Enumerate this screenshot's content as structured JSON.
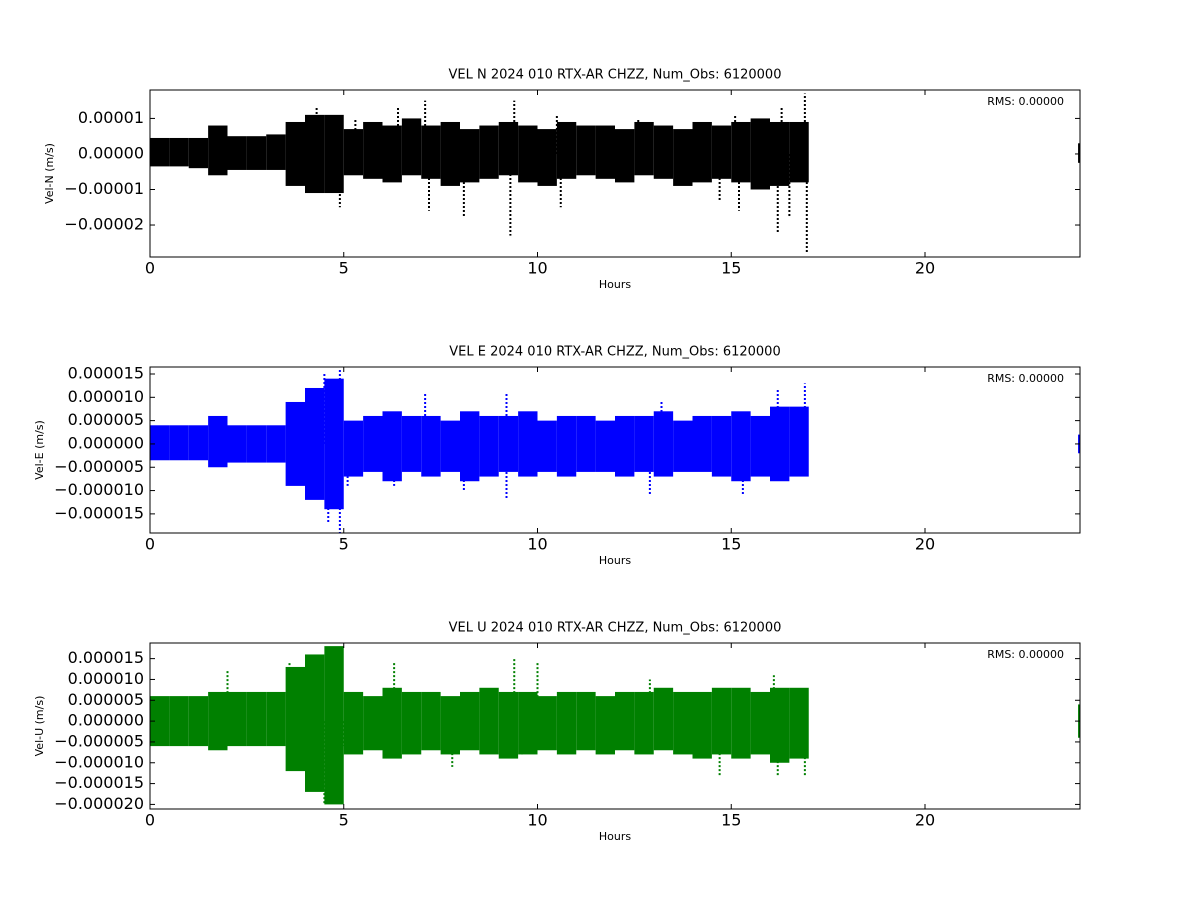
{
  "chart_data": [
    {
      "type": "scatter",
      "title": "VEL N 2024 010 RTX-AR  CHZZ, Num_Obs: 6120000",
      "xlabel": "Hours",
      "ylabel": "Vel-N (m/s)",
      "annotation": "RMS:  0.00000",
      "annotation_color": "#0000ff",
      "color": "#000000",
      "xlim": [
        0,
        24
      ],
      "xticks": [
        0,
        5,
        10,
        15,
        20
      ],
      "ylim": [
        -2.9e-05,
        1.8e-05
      ],
      "yticks": [
        {
          "value": 1e-05,
          "label": "0.00001"
        },
        {
          "value": 0,
          "label": "0.00000"
        },
        {
          "value": -1e-05,
          "label": "−0.00001"
        },
        {
          "value": -2e-05,
          "label": "−0.00002"
        }
      ],
      "bins": [
        0,
        0.5,
        1,
        1.5,
        2,
        2.5,
        3,
        3.5,
        4,
        4.5,
        5,
        5.5,
        6,
        6.5,
        7,
        7.5,
        8,
        8.5,
        9,
        9.5,
        10,
        10.5,
        11,
        11.5,
        12,
        12.5,
        13,
        13.5,
        14,
        14.5,
        15,
        15.5,
        16,
        16.5,
        17,
        23.95,
        24
      ],
      "low": [
        -3.5e-06,
        -3.5e-06,
        -4e-06,
        -6e-06,
        -4.5e-06,
        -4.5e-06,
        -4.5e-06,
        -9e-06,
        -1.1e-05,
        -1.1e-05,
        -6e-06,
        -7e-06,
        -8e-06,
        -6e-06,
        -7e-06,
        -9e-06,
        -8e-06,
        -7e-06,
        -6e-06,
        -8e-06,
        -9e-06,
        -7e-06,
        -6e-06,
        -7e-06,
        -8e-06,
        -6e-06,
        -7e-06,
        -9e-06,
        -8e-06,
        -7e-06,
        -8e-06,
        -1e-05,
        -9e-06,
        -8e-06,
        null,
        -2.5e-06
      ],
      "high": [
        4.5e-06,
        4.5e-06,
        4.5e-06,
        8e-06,
        5e-06,
        5e-06,
        5.5e-06,
        9e-06,
        1.1e-05,
        1.1e-05,
        7e-06,
        9e-06,
        8e-06,
        1e-05,
        8e-06,
        9e-06,
        7e-06,
        8e-06,
        9e-06,
        8e-06,
        7e-06,
        9e-06,
        8e-06,
        8e-06,
        7e-06,
        9e-06,
        8e-06,
        7e-06,
        9e-06,
        8e-06,
        9e-06,
        1e-05,
        9e-06,
        9e-06,
        null,
        3e-06
      ],
      "points": {
        "x": [
          4.3,
          4.9,
          5.3,
          6.4,
          7.1,
          7.2,
          8.1,
          9.3,
          9.4,
          10.5,
          10.6,
          12.6,
          14.7,
          15.1,
          15.2,
          16.2,
          16.3,
          16.5,
          16.9,
          16.95
        ],
        "y": [
          1.3e-05,
          -1.5e-05,
          1e-05,
          1.3e-05,
          1.5e-05,
          -1.6e-05,
          -1.8e-05,
          -2.3e-05,
          1.5e-05,
          1.1e-05,
          -1.5e-05,
          1e-05,
          -1.3e-05,
          1.1e-05,
          -1.6e-05,
          -2.2e-05,
          1.3e-05,
          -1.8e-05,
          1.7e-05,
          -2.8e-05
        ]
      }
    },
    {
      "type": "scatter",
      "title": "VEL E 2024 010 RTX-AR  CHZZ, Num_Obs: 6120000",
      "xlabel": "Hours",
      "ylabel": "Vel-E (m/s)",
      "annotation": "RMS:  0.00000",
      "annotation_color": "#0000ff",
      "color": "#0000ff",
      "xlim": [
        0,
        24
      ],
      "xticks": [
        0,
        5,
        10,
        15,
        20
      ],
      "ylim": [
        -1.91e-05,
        1.65e-05
      ],
      "yticks": [
        {
          "value": 1.5e-05,
          "label": "0.000015"
        },
        {
          "value": 1e-05,
          "label": "0.000010"
        },
        {
          "value": 5e-06,
          "label": "0.000005"
        },
        {
          "value": 0,
          "label": "0.000000"
        },
        {
          "value": -5e-06,
          "label": "−0.000005"
        },
        {
          "value": -1e-05,
          "label": "−0.000010"
        },
        {
          "value": -1.5e-05,
          "label": "−0.000015"
        }
      ],
      "bins": [
        0,
        0.5,
        1,
        1.5,
        2,
        2.5,
        3,
        3.5,
        4,
        4.5,
        5,
        5.5,
        6,
        6.5,
        7,
        7.5,
        8,
        8.5,
        9,
        9.5,
        10,
        10.5,
        11,
        11.5,
        12,
        12.5,
        13,
        13.5,
        14,
        14.5,
        15,
        15.5,
        16,
        16.5,
        17,
        23.95,
        24
      ],
      "low": [
        -3.5e-06,
        -3.5e-06,
        -3.5e-06,
        -5e-06,
        -4e-06,
        -4e-06,
        -4e-06,
        -9e-06,
        -1.2e-05,
        -1.4e-05,
        -7e-06,
        -6e-06,
        -8e-06,
        -6e-06,
        -7e-06,
        -6e-06,
        -8e-06,
        -7e-06,
        -6e-06,
        -7e-06,
        -6e-06,
        -7e-06,
        -6e-06,
        -6e-06,
        -7e-06,
        -6e-06,
        -7e-06,
        -6e-06,
        -6e-06,
        -7e-06,
        -8e-06,
        -7e-06,
        -8e-06,
        -7e-06,
        null,
        -2e-06
      ],
      "high": [
        4e-06,
        4e-06,
        4e-06,
        6e-06,
        4e-06,
        4e-06,
        4e-06,
        9e-06,
        1.2e-05,
        1.4e-05,
        5e-06,
        6e-06,
        7e-06,
        6e-06,
        6e-06,
        5e-06,
        7e-06,
        6e-06,
        6e-06,
        7e-06,
        5e-06,
        6e-06,
        6e-06,
        5e-06,
        6e-06,
        6e-06,
        7e-06,
        5e-06,
        6e-06,
        6e-06,
        7e-06,
        6e-06,
        8e-06,
        8e-06,
        null,
        2e-06
      ],
      "points": {
        "x": [
          4.5,
          4.6,
          4.9,
          4.9,
          5.1,
          6.3,
          7.1,
          8.1,
          9.2,
          9.2,
          12.9,
          13.2,
          15.3,
          16.2,
          16.9
        ],
        "y": [
          1.5e-05,
          -1.7e-05,
          -1.9e-05,
          1.6e-05,
          -9e-06,
          -9e-06,
          1.1e-05,
          -1e-05,
          1.1e-05,
          -1.2e-05,
          -1.1e-05,
          9e-06,
          -1.1e-05,
          1.2e-05,
          1.3e-05
        ]
      }
    },
    {
      "type": "scatter",
      "title": "VEL U 2024 010 RTX-AR  CHZZ, Num_Obs: 6120000",
      "xlabel": "Hours",
      "ylabel": "Vel-U (m/s)",
      "annotation": "RMS:  0.00000",
      "annotation_color": "#0000ff",
      "color": "#008000",
      "xlim": [
        0,
        24
      ],
      "xticks": [
        0,
        5,
        10,
        15,
        20
      ],
      "ylim": [
        -2.11e-05,
        1.875e-05
      ],
      "yticks": [
        {
          "value": 1.5e-05,
          "label": "0.000015"
        },
        {
          "value": 1e-05,
          "label": "0.000010"
        },
        {
          "value": 5e-06,
          "label": "0.000005"
        },
        {
          "value": 0,
          "label": "0.000000"
        },
        {
          "value": -5e-06,
          "label": "−0.000005"
        },
        {
          "value": -1e-05,
          "label": "−0.000010"
        },
        {
          "value": -1.5e-05,
          "label": "−0.000015"
        },
        {
          "value": -2e-05,
          "label": "−0.000020"
        }
      ],
      "bins": [
        0,
        0.5,
        1,
        1.5,
        2,
        2.5,
        3,
        3.5,
        4,
        4.5,
        5,
        5.5,
        6,
        6.5,
        7,
        7.5,
        8,
        8.5,
        9,
        9.5,
        10,
        10.5,
        11,
        11.5,
        12,
        12.5,
        13,
        13.5,
        14,
        14.5,
        15,
        15.5,
        16,
        16.5,
        17,
        23.95,
        24
      ],
      "low": [
        -6e-06,
        -6e-06,
        -6e-06,
        -7e-06,
        -6e-06,
        -6e-06,
        -6e-06,
        -1.2e-05,
        -1.7e-05,
        -2e-05,
        -8e-06,
        -7e-06,
        -9e-06,
        -8e-06,
        -7e-06,
        -8e-06,
        -7e-06,
        -8e-06,
        -9e-06,
        -8e-06,
        -7e-06,
        -8e-06,
        -7e-06,
        -8e-06,
        -7e-06,
        -8e-06,
        -7e-06,
        -8e-06,
        -9e-06,
        -8e-06,
        -9e-06,
        -8e-06,
        -1e-05,
        -9e-06,
        null,
        -4e-06
      ],
      "high": [
        6e-06,
        6e-06,
        6e-06,
        7e-06,
        7e-06,
        7e-06,
        7e-06,
        1.3e-05,
        1.6e-05,
        1.8e-05,
        7e-06,
        6e-06,
        8e-06,
        7e-06,
        7e-06,
        6e-06,
        7e-06,
        8e-06,
        7e-06,
        7e-06,
        6e-06,
        7e-06,
        7e-06,
        6e-06,
        7e-06,
        7e-06,
        8e-06,
        7e-06,
        7e-06,
        8e-06,
        8e-06,
        7e-06,
        8e-06,
        8e-06,
        null,
        4e-06
      ],
      "points": {
        "x": [
          2.0,
          3.6,
          4.5,
          4.7,
          4.8,
          5.0,
          6.3,
          7.8,
          9.4,
          9.6,
          10.0,
          12.9,
          14.7,
          16.1,
          16.2,
          16.9
        ],
        "y": [
          1.2e-05,
          1.4e-05,
          -2e-05,
          1.8e-05,
          -1.8e-05,
          -6e-06,
          1.4e-05,
          -1.1e-05,
          1.5e-05,
          -8e-06,
          1.4e-05,
          1e-05,
          -1.3e-05,
          1.1e-05,
          -1.3e-05,
          -1.3e-05
        ]
      }
    }
  ]
}
